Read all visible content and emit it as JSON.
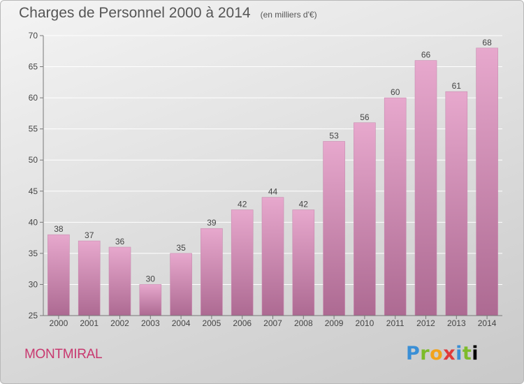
{
  "header": {
    "title": "Charges de Personnel 2000 à 2014",
    "subtitle": "(en milliers d'€)"
  },
  "footer": {
    "commune": "MONTMIRAL",
    "logo_letters": [
      "P",
      "r",
      "o",
      "x",
      "i",
      "t",
      "i"
    ]
  },
  "colors": {
    "bar_top": "#e7a8cd",
    "bar_bottom": "#ad6a92",
    "commune_text": "#c8386f"
  },
  "chart_data": {
    "type": "bar",
    "title": "Charges de Personnel 2000 à 2014",
    "subtitle": "(en milliers d'€)",
    "categories": [
      "2000",
      "2001",
      "2002",
      "2003",
      "2004",
      "2005",
      "2006",
      "2007",
      "2008",
      "2009",
      "2010",
      "2011",
      "2012",
      "2013",
      "2014"
    ],
    "values": [
      38,
      37,
      36,
      30,
      35,
      39,
      42,
      44,
      42,
      53,
      56,
      60,
      66,
      61,
      68
    ],
    "ylim": [
      25,
      70
    ],
    "yticks": [
      25,
      30,
      35,
      40,
      45,
      50,
      55,
      60,
      65,
      70
    ],
    "grid": true,
    "data_labels": true
  }
}
